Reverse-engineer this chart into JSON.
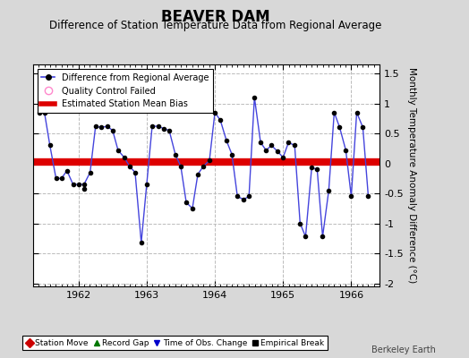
{
  "title": "BEAVER DAM",
  "subtitle": "Difference of Station Temperature Data from Regional Average",
  "ylabel": "Monthly Temperature Anomaly Difference (°C)",
  "xlabel_years": [
    1962,
    1963,
    1964,
    1965,
    1966
  ],
  "bias": 0.03,
  "background_color": "#d8d8d8",
  "plot_bg_color": "#ffffff",
  "ylim": [
    -2.05,
    1.65
  ],
  "yticks": [
    -2.0,
    -1.5,
    -1.0,
    -0.5,
    0.0,
    0.5,
    1.0,
    1.5
  ],
  "xlim": [
    1961.33,
    1966.42
  ],
  "xdata": [
    1961.42,
    1961.5,
    1961.58,
    1961.67,
    1961.75,
    1961.83,
    1961.92,
    1962.0,
    1962.08,
    1962.17,
    1962.25,
    1962.33,
    1962.42,
    1962.5,
    1962.58,
    1962.67,
    1962.75,
    1962.83,
    1962.92,
    1963.0,
    1963.08,
    1963.17,
    1963.25,
    1963.33,
    1963.42,
    1963.5,
    1963.58,
    1963.67,
    1963.75,
    1963.83,
    1963.92,
    1964.0,
    1964.08,
    1964.17,
    1964.25,
    1964.33,
    1964.42,
    1964.5,
    1964.58,
    1964.67,
    1964.75,
    1964.83,
    1964.92,
    1965.0,
    1965.08,
    1965.17,
    1965.25,
    1965.33,
    1965.42,
    1965.5,
    1965.58,
    1965.67,
    1965.75,
    1965.83,
    1965.92,
    1966.0,
    1966.08,
    1966.17,
    1966.25
  ],
  "ydata": [
    0.85,
    0.85,
    0.3,
    -0.25,
    -0.25,
    -0.12,
    -0.35,
    -0.35,
    -0.35,
    -0.15,
    0.62,
    0.6,
    0.62,
    0.55,
    0.22,
    0.1,
    -0.05,
    -0.15,
    -1.32,
    -0.35,
    0.62,
    0.62,
    0.58,
    0.55,
    0.15,
    -0.05,
    -0.65,
    -0.75,
    -0.18,
    -0.05,
    0.05,
    0.85,
    0.72,
    0.38,
    0.15,
    -0.55,
    -0.6,
    -0.55,
    1.1,
    0.35,
    0.22,
    0.3,
    0.2,
    0.1,
    0.35,
    0.3,
    -1.0,
    -1.22,
    -0.07,
    -0.1,
    -1.22,
    -0.45,
    0.85,
    0.6,
    0.22,
    -0.55,
    0.85,
    0.6,
    -0.55
  ],
  "isolated_point_x": 1962.08,
  "isolated_point_y": -0.42,
  "line_color": "#4444dd",
  "marker_color": "#000000",
  "bias_color": "#dd0000",
  "bias_linewidth": 6,
  "grid_color": "#bbbbbb",
  "grid_linestyle": "--",
  "legend_items": [
    {
      "label": "Difference from Regional Average",
      "color": "#4444dd",
      "type": "line"
    },
    {
      "label": "Quality Control Failed",
      "color": "#ff88cc",
      "type": "circle"
    },
    {
      "label": "Estimated Station Mean Bias",
      "color": "#dd0000",
      "type": "line"
    }
  ],
  "bottom_legend": [
    {
      "label": "Station Move",
      "color": "#cc0000",
      "marker": "D"
    },
    {
      "label": "Record Gap",
      "color": "#007700",
      "marker": "^"
    },
    {
      "label": "Time of Obs. Change",
      "color": "#0000cc",
      "marker": "v"
    },
    {
      "label": "Empirical Break",
      "color": "#000000",
      "marker": "s"
    }
  ],
  "watermark": "Berkeley Earth",
  "title_fontsize": 12,
  "subtitle_fontsize": 8.5,
  "ylabel_fontsize": 7.5,
  "tick_fontsize": 8
}
